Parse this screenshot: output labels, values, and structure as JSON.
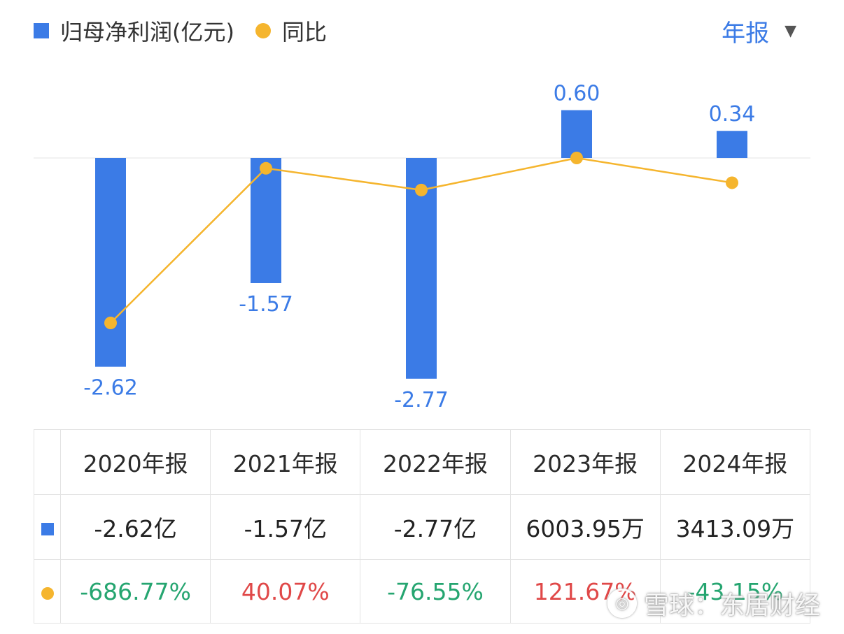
{
  "legend": {
    "bar_label": "归母净利润(亿元)",
    "line_label": "同比"
  },
  "period_selector": {
    "label": "年报",
    "caret": "▼"
  },
  "colors": {
    "bar": "#3b7be6",
    "line": "#f5b52e",
    "positive": "#e04848",
    "negative": "#25a570",
    "label": "#3b7be6"
  },
  "chart_data": {
    "type": "bar",
    "categories": [
      "2020年报",
      "2021年报",
      "2022年报",
      "2023年报",
      "2024年报"
    ],
    "series": [
      {
        "name": "归母净利润(亿元)",
        "type": "bar",
        "values": [
          -2.62,
          -1.57,
          -2.77,
          0.6,
          0.34
        ],
        "labels": [
          "-2.62",
          "-1.57",
          "-2.77",
          "0.60",
          "0.34"
        ]
      },
      {
        "name": "同比",
        "type": "line",
        "values": [
          -686.77,
          40.07,
          -76.55,
          121.67,
          -43.15
        ]
      }
    ]
  },
  "table": {
    "headers": [
      "2020年报",
      "2021年报",
      "2022年报",
      "2023年报",
      "2024年报"
    ],
    "profit_row": [
      "-2.62亿",
      "-1.57亿",
      "-2.77亿",
      "6003.95万",
      "3413.09万"
    ],
    "yoy_row": [
      {
        "text": "-686.77%",
        "sign": "negative"
      },
      {
        "text": "40.07%",
        "sign": "positive"
      },
      {
        "text": "-76.55%",
        "sign": "negative"
      },
      {
        "text": "121.67%",
        "sign": "positive"
      },
      {
        "text": "-43.15%",
        "sign": "negative"
      }
    ]
  },
  "watermark": {
    "logo": "◎",
    "text": "雪球：东居财经"
  }
}
